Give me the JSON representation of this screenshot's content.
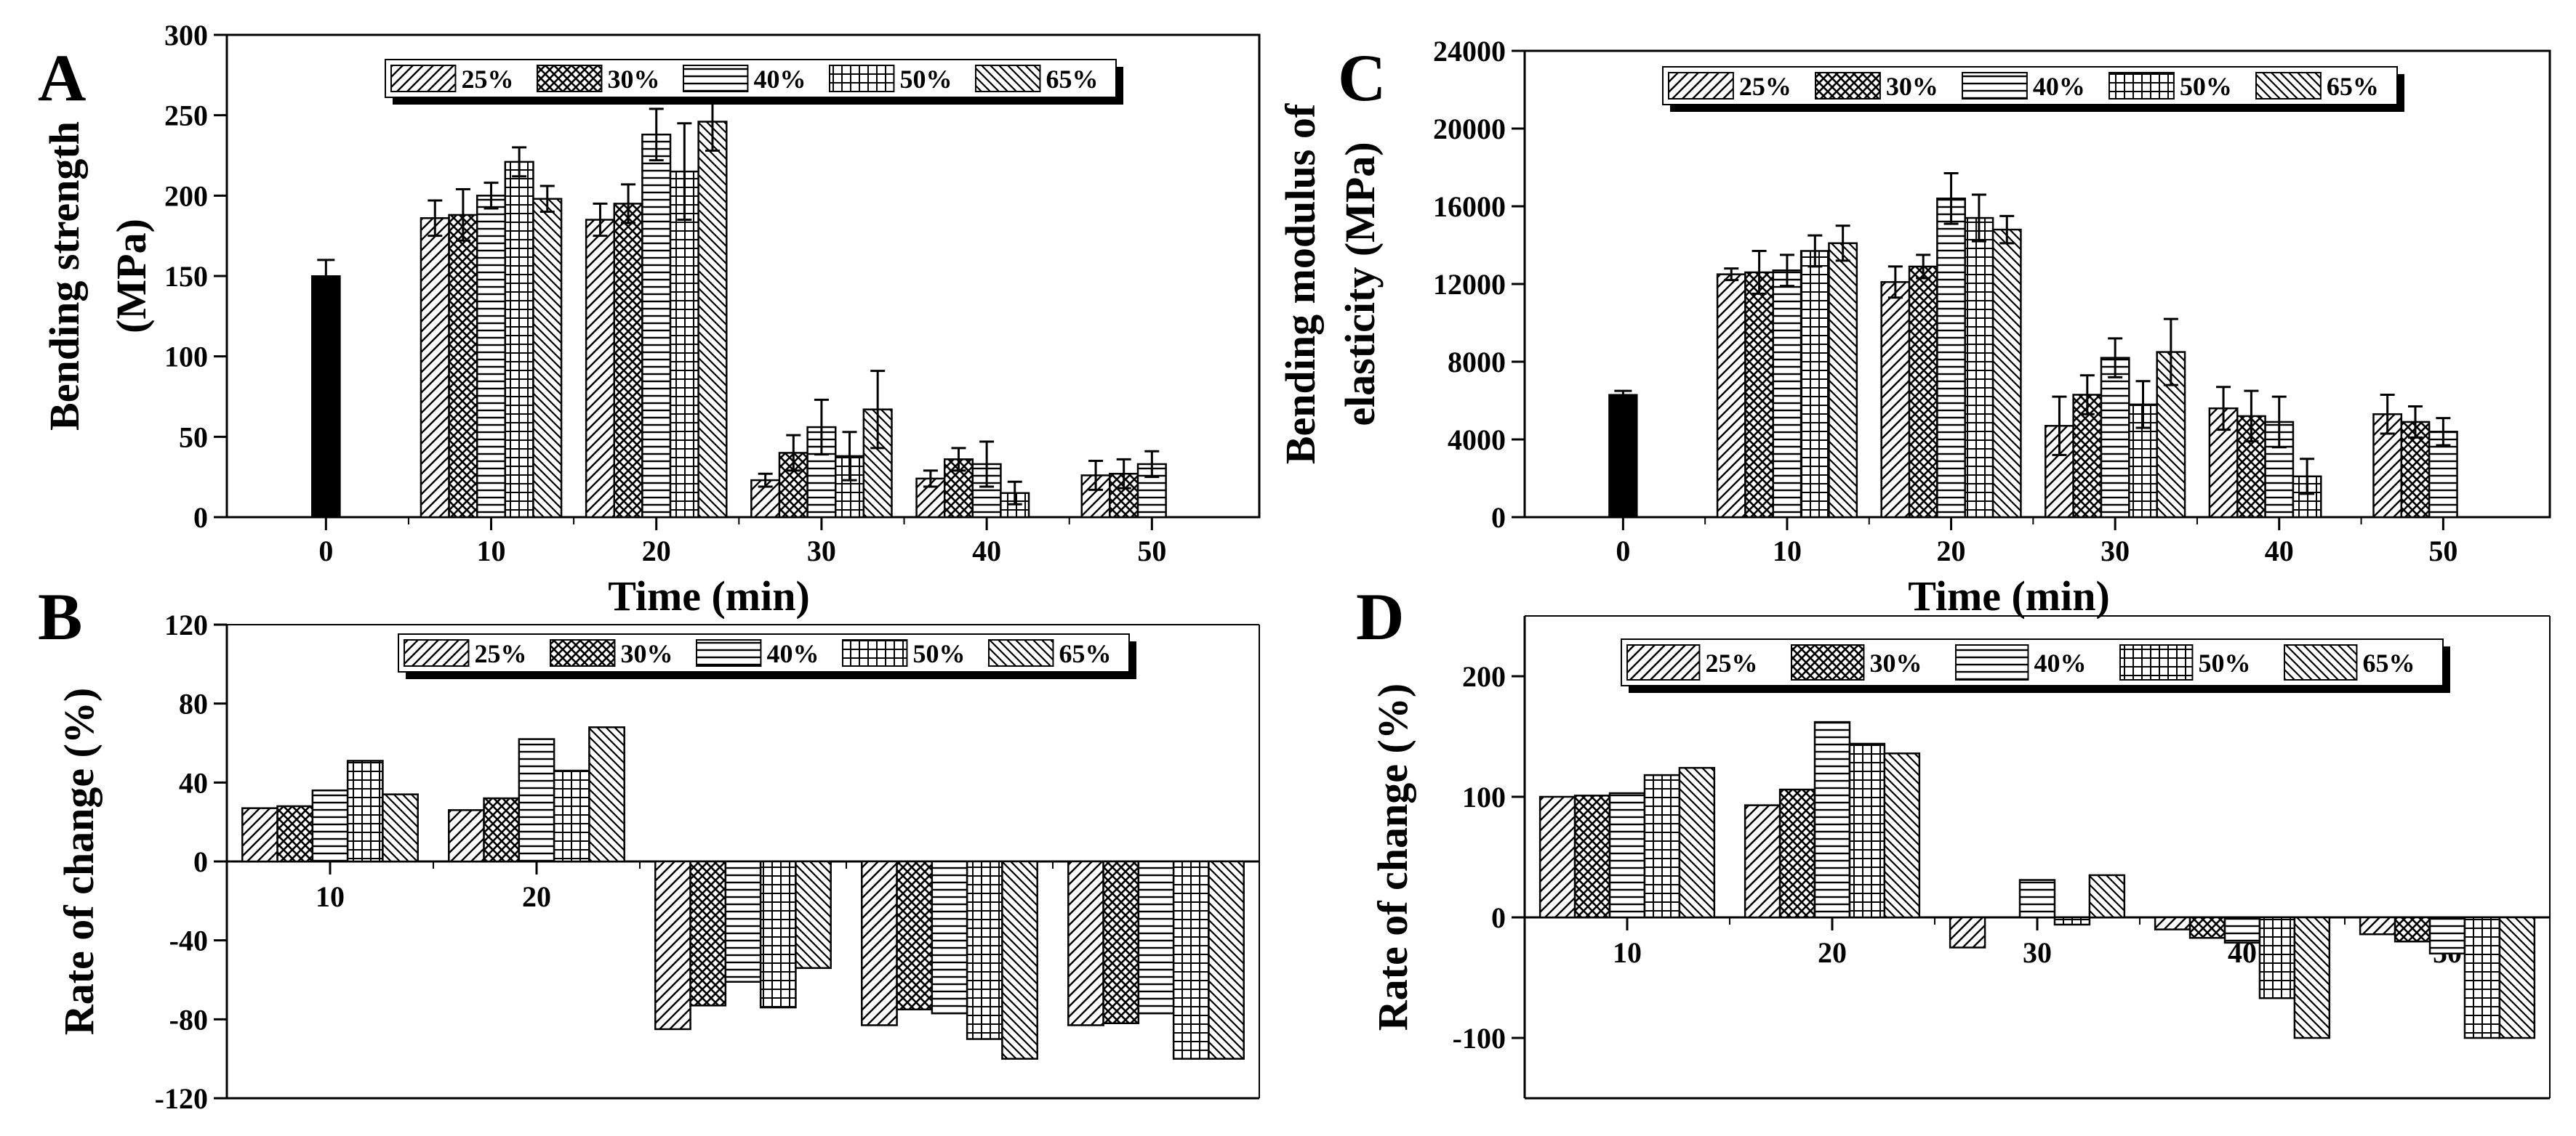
{
  "colors": {
    "ink": "#000000",
    "background": "#ffffff",
    "control_bar": "#000000"
  },
  "legend_labels": [
    "25%",
    "30%",
    "40%",
    "50%",
    "65%"
  ],
  "chart_data": [
    {
      "id": "A",
      "panel_letter": "A",
      "type": "bar",
      "x_title": "Time (min)",
      "y_title_lines": [
        "Bending strength",
        "(MPa)"
      ],
      "ylim": [
        0,
        300
      ],
      "y_ticks": [
        0,
        50,
        100,
        150,
        200,
        250,
        300
      ],
      "legend_position": "top-center",
      "control": {
        "category": "0",
        "value": 150,
        "error": 10
      },
      "categories": [
        "10",
        "20",
        "30",
        "40",
        "50"
      ],
      "series": [
        {
          "name": "25%",
          "values": [
            186,
            185,
            23,
            24,
            26
          ],
          "errors": [
            11,
            10,
            4,
            5,
            9
          ]
        },
        {
          "name": "30%",
          "values": [
            188,
            195,
            40,
            36,
            27
          ],
          "errors": [
            16,
            12,
            11,
            7,
            9
          ]
        },
        {
          "name": "40%",
          "values": [
            200,
            238,
            56,
            33,
            33
          ],
          "errors": [
            8,
            16,
            17,
            14,
            8
          ]
        },
        {
          "name": "50%",
          "values": [
            221,
            215,
            38,
            15,
            null
          ],
          "errors": [
            9,
            30,
            15,
            7,
            null
          ]
        },
        {
          "name": "65%",
          "values": [
            198,
            246,
            67,
            null,
            null
          ],
          "errors": [
            8,
            18,
            24,
            null,
            null
          ]
        }
      ]
    },
    {
      "id": "B",
      "panel_letter": "B",
      "type": "bar",
      "x_title": "",
      "y_title_lines": [
        "Rate of change (%)"
      ],
      "ylim": [
        -120,
        120
      ],
      "y_ticks": [
        -120,
        -80,
        -40,
        0,
        40,
        80,
        120
      ],
      "legend_position": "top-center",
      "categories": [
        "10",
        "20",
        "30",
        "40",
        "50"
      ],
      "series": [
        {
          "name": "25%",
          "values": [
            27,
            26,
            -85,
            -83,
            -83
          ]
        },
        {
          "name": "30%",
          "values": [
            28,
            32,
            -73,
            -75,
            -82
          ]
        },
        {
          "name": "40%",
          "values": [
            36,
            62,
            -61,
            -77,
            -77
          ]
        },
        {
          "name": "50%",
          "values": [
            51,
            46,
            -74,
            -90,
            -100
          ]
        },
        {
          "name": "65%",
          "values": [
            34,
            68,
            -54,
            -100,
            -100
          ]
        }
      ]
    },
    {
      "id": "C",
      "panel_letter": "C",
      "type": "bar",
      "x_title": "Time (min)",
      "y_title_lines": [
        "Bending modulus of",
        "elasticity (MPa)"
      ],
      "ylim": [
        0,
        24000
      ],
      "y_ticks": [
        0,
        4000,
        8000,
        12000,
        16000,
        20000,
        24000
      ],
      "legend_position": "top-center",
      "control": {
        "category": "0",
        "value": 6300,
        "error": 200
      },
      "categories": [
        "10",
        "20",
        "30",
        "40",
        "50"
      ],
      "series": [
        {
          "name": "25%",
          "values": [
            12500,
            12100,
            4700,
            5600,
            5300
          ],
          "errors": [
            300,
            800,
            1500,
            1100,
            1000
          ]
        },
        {
          "name": "30%",
          "values": [
            12600,
            12900,
            6300,
            5200,
            4900
          ],
          "errors": [
            1100,
            600,
            1000,
            1300,
            800
          ]
        },
        {
          "name": "40%",
          "values": [
            12700,
            16400,
            8200,
            4900,
            4400
          ],
          "errors": [
            800,
            1300,
            1000,
            1300,
            700
          ]
        },
        {
          "name": "50%",
          "values": [
            13700,
            15400,
            5800,
            2100,
            null
          ],
          "errors": [
            800,
            1200,
            1200,
            900,
            null
          ]
        },
        {
          "name": "65%",
          "values": [
            14100,
            14800,
            8500,
            null,
            null
          ],
          "errors": [
            900,
            700,
            1700,
            null,
            null
          ]
        }
      ]
    },
    {
      "id": "D",
      "panel_letter": "D",
      "type": "bar",
      "x_title": "",
      "y_title_lines": [
        "Rate of change (%)"
      ],
      "ylim": [
        -150,
        250
      ],
      "y_ticks": [
        -100,
        0,
        100,
        200
      ],
      "legend_position": "top-center",
      "categories": [
        "10",
        "20",
        "30",
        "40",
        "50"
      ],
      "series": [
        {
          "name": "25%",
          "values": [
            100,
            93,
            -25,
            -10,
            -14
          ]
        },
        {
          "name": "30%",
          "values": [
            101,
            106,
            0,
            -17,
            -20
          ]
        },
        {
          "name": "40%",
          "values": [
            103,
            162,
            31,
            -21,
            -30
          ]
        },
        {
          "name": "50%",
          "values": [
            118,
            144,
            -6,
            -67,
            -100
          ]
        },
        {
          "name": "65%",
          "values": [
            124,
            136,
            35,
            -100,
            -100
          ]
        }
      ]
    }
  ]
}
